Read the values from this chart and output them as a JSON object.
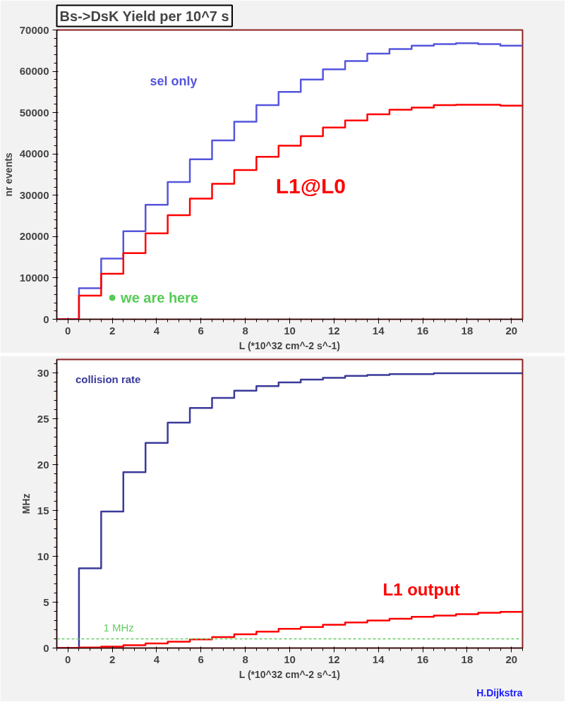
{
  "chart_data": [
    {
      "type": "histogram",
      "title": "Bs->DsK Yield per 10^7 s",
      "ylabel": "nr events",
      "xlabel": "L (*10^32 cm^-2 s^-1)",
      "bins": [
        -0.5,
        0.5,
        1.5,
        2.5,
        3.5,
        4.5,
        5.5,
        6.5,
        7.5,
        8.5,
        9.5,
        10.5,
        11.5,
        12.5,
        13.5,
        14.5,
        15.5,
        16.5,
        17.5,
        18.5,
        19.5,
        20.5
      ],
      "series": [
        {
          "name": "sel only",
          "color": "#5555dd",
          "values": [
            0,
            7500,
            14700,
            21300,
            27700,
            33200,
            38700,
            43300,
            47800,
            51800,
            55000,
            58000,
            60500,
            62500,
            64300,
            65400,
            66200,
            66600,
            66800,
            66600,
            66200
          ]
        },
        {
          "name": "L1@L0",
          "color": "#ff0000",
          "values": [
            0,
            5700,
            11000,
            16000,
            20800,
            25200,
            29200,
            32800,
            36100,
            39300,
            42000,
            44300,
            46400,
            48100,
            49600,
            50700,
            51200,
            51800,
            51900,
            51900,
            51700
          ]
        }
      ],
      "annotations": [
        {
          "text": "we are here",
          "x": 2,
          "y": 5200
        }
      ],
      "xlim": [
        -0.5,
        20.5
      ],
      "xticks": [
        0,
        2,
        4,
        6,
        8,
        10,
        12,
        14,
        16,
        18,
        20
      ],
      "ylim": [
        0,
        70000
      ],
      "yticks": [
        0,
        10000,
        20000,
        30000,
        40000,
        50000,
        60000,
        70000
      ],
      "grid": false
    },
    {
      "type": "histogram",
      "ylabel": "MHz",
      "xlabel": "L (*10^32 cm^-2 s^-1)",
      "bins": [
        -0.5,
        0.5,
        1.5,
        2.5,
        3.5,
        4.5,
        5.5,
        6.5,
        7.5,
        8.5,
        9.5,
        10.5,
        11.5,
        12.5,
        13.5,
        14.5,
        15.5,
        16.5,
        17.5,
        18.5,
        19.5,
        20.5
      ],
      "series": [
        {
          "name": "collision rate",
          "color": "#3a3a9a",
          "values": [
            0,
            8.7,
            14.9,
            19.2,
            22.4,
            24.6,
            26.2,
            27.3,
            28.1,
            28.6,
            29.0,
            29.3,
            29.5,
            29.7,
            29.8,
            29.9,
            29.9,
            30.0,
            30.0,
            30.0,
            30.0
          ]
        },
        {
          "name": "L1 output",
          "color": "#ff0000",
          "values": [
            0,
            0.05,
            0.15,
            0.3,
            0.5,
            0.7,
            0.95,
            1.2,
            1.5,
            1.8,
            2.1,
            2.3,
            2.55,
            2.8,
            3.0,
            3.2,
            3.4,
            3.55,
            3.7,
            3.85,
            3.95
          ]
        }
      ],
      "ref_lines": [
        {
          "axis": "y",
          "value": 1,
          "label": "1 MHz",
          "color": "#66cc66",
          "line_style": "dashed"
        }
      ],
      "annotations": [
        "H.Dijkstra"
      ],
      "xlim": [
        -0.5,
        20.5
      ],
      "xticks": [
        0,
        2,
        4,
        6,
        8,
        10,
        12,
        14,
        16,
        18,
        20
      ],
      "ylim": [
        0,
        31.5
      ],
      "yticks": [
        0,
        5,
        10,
        15,
        20,
        25,
        30
      ],
      "grid": false
    }
  ]
}
